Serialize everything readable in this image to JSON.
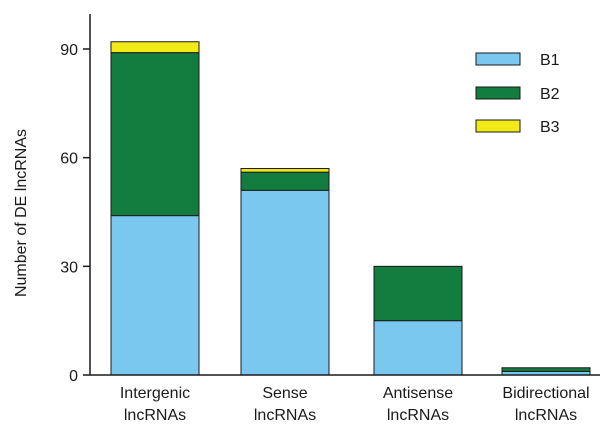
{
  "chart_data": {
    "type": "bar",
    "stacked": true,
    "categories": [
      [
        "Intergenic",
        "lncRNAs"
      ],
      [
        "Sense",
        "lncRNAs"
      ],
      [
        "Antisense",
        "lncRNAs"
      ],
      [
        "Bidirectional",
        "lncRNAs"
      ]
    ],
    "series": [
      {
        "name": "B1",
        "color": "#7ac8f0",
        "values": [
          44,
          51,
          15,
          1
        ]
      },
      {
        "name": "B2",
        "color": "#137c3f",
        "values": [
          45,
          5,
          15,
          1
        ]
      },
      {
        "name": "B3",
        "color": "#f2ea17",
        "values": [
          3,
          1,
          0,
          0
        ]
      }
    ],
    "ylabel": "Number of DE lncRNAs",
    "xlabel": "",
    "ylim": [
      0,
      100
    ],
    "yticks": [
      0,
      30,
      60,
      90
    ],
    "grid": false,
    "legend_position": "top-right"
  }
}
